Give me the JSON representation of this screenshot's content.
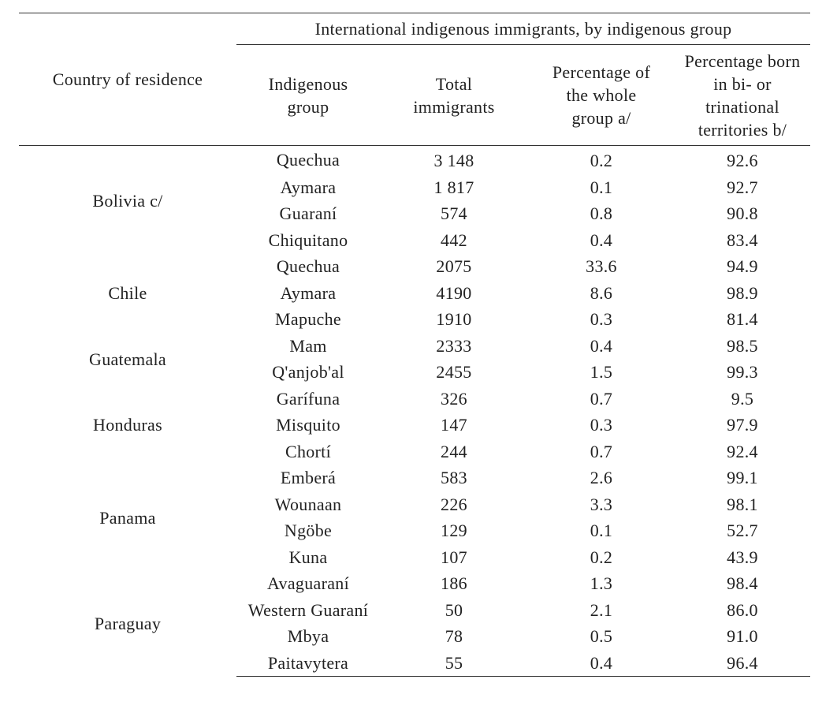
{
  "table": {
    "header": {
      "country": "Country of residence",
      "span": "International indigenous immigrants, by indigenous group",
      "columns": [
        "Indigenous group",
        "Total immigrants",
        "Percentage of the whole group a/",
        "Percentage born in bi- or trinational territories b/"
      ]
    },
    "groups": [
      {
        "country": "Bolivia c/",
        "rows": [
          [
            "Quechua",
            "3 148",
            "0.2",
            "92.6"
          ],
          [
            "Aymara",
            "1 817",
            "0.1",
            "92.7"
          ],
          [
            "Guaraní",
            "574",
            "0.8",
            "90.8"
          ],
          [
            "Chiquitano",
            "442",
            "0.4",
            "83.4"
          ]
        ]
      },
      {
        "country": "Chile",
        "rows": [
          [
            "Quechua",
            "2075",
            "33.6",
            "94.9"
          ],
          [
            "Aymara",
            "4190",
            "8.6",
            "98.9"
          ],
          [
            "Mapuche",
            "1910",
            "0.3",
            "81.4"
          ]
        ]
      },
      {
        "country": "Guatemala",
        "rows": [
          [
            "Mam",
            "2333",
            "0.4",
            "98.5"
          ],
          [
            "Q'anjob'al",
            "2455",
            "1.5",
            "99.3"
          ]
        ]
      },
      {
        "country": "Honduras",
        "rows": [
          [
            "Garífuna",
            "326",
            "0.7",
            "9.5"
          ],
          [
            "Misquito",
            "147",
            "0.3",
            "97.9"
          ],
          [
            "Chortí",
            "244",
            "0.7",
            "92.4"
          ]
        ]
      },
      {
        "country": "Panama",
        "rows": [
          [
            "Emberá",
            "583",
            "2.6",
            "99.1"
          ],
          [
            "Wounaan",
            "226",
            "3.3",
            "98.1"
          ],
          [
            "Ngöbe",
            "129",
            "0.1",
            "52.7"
          ],
          [
            "Kuna",
            "107",
            "0.2",
            "43.9"
          ]
        ]
      },
      {
        "country": "Paraguay",
        "rows": [
          [
            "Avaguaraní",
            "186",
            "1.3",
            "98.4"
          ],
          [
            "Western Guaraní",
            "50",
            "2.1",
            "86.0"
          ],
          [
            "Mbya",
            "78",
            "0.5",
            "91.0"
          ],
          [
            "Paitavytera",
            "55",
            "0.4",
            "96.4"
          ]
        ]
      }
    ]
  }
}
